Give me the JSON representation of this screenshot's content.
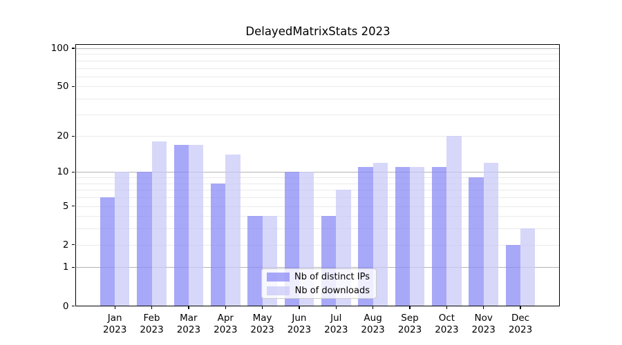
{
  "chart_data": {
    "type": "bar",
    "title": "DelayedMatrixStats 2023",
    "months": [
      "Jan",
      "Feb",
      "Mar",
      "Apr",
      "May",
      "Jun",
      "Jul",
      "Aug",
      "Sep",
      "Oct",
      "Nov",
      "Dec"
    ],
    "year": "2023",
    "categories": [
      "Jan 2023",
      "Feb 2023",
      "Mar 2023",
      "Apr 2023",
      "May 2023",
      "Jun 2023",
      "Jul 2023",
      "Aug 2023",
      "Sep 2023",
      "Oct 2023",
      "Nov 2023",
      "Dec 2023"
    ],
    "series": [
      {
        "name": "Nb of distinct IPs",
        "color": "rgba(136,136,245,0.73)",
        "values": [
          6,
          10,
          17,
          8,
          4,
          10,
          4,
          11,
          11,
          11,
          9,
          2
        ]
      },
      {
        "name": "Nb of downloads",
        "color": "rgba(200,200,248,0.73)",
        "values": [
          10,
          18,
          17,
          14,
          4,
          10,
          7,
          12,
          11,
          20,
          12,
          3
        ]
      }
    ],
    "yscale": "log1p",
    "yticks": [
      0,
      1,
      2,
      5,
      10,
      20,
      50,
      100
    ],
    "ylim": [
      0,
      108
    ],
    "xlabel": "",
    "ylabel": "",
    "grid": {
      "on": true,
      "major_at": [
        1,
        10,
        100
      ],
      "minor_at": [
        2,
        3,
        4,
        5,
        6,
        7,
        8,
        9,
        20,
        30,
        40,
        50,
        60,
        70,
        80,
        90
      ],
      "major_color": "#b4b4b4",
      "minor_color": "#eaeaea"
    },
    "legend": {
      "position": "lower center inside",
      "items": [
        "Nb of distinct IPs",
        "Nb of downloads"
      ]
    },
    "colors": {
      "axis": "#000000",
      "background": "#ffffff",
      "bar_dark": "rgba(136,136,245,0.73)",
      "bar_light": "rgba(200,200,248,0.73)"
    }
  }
}
